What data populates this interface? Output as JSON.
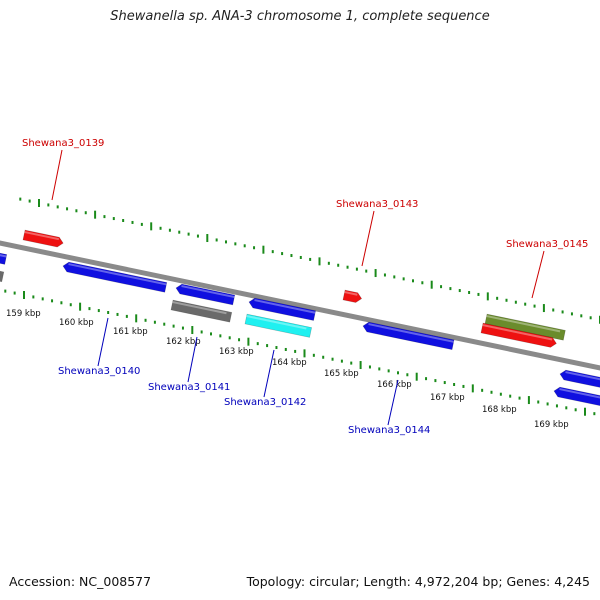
{
  "title": "Shewanella sp. ANA-3 chromosome 1, complete sequence",
  "footer": {
    "accession_label": "Accession:",
    "accession": "NC_008577",
    "topology_label": "Topology:",
    "topology": "circular",
    "length_label": "Length:",
    "length": "4,972,204 bp",
    "genes_label": "Genes:",
    "genes": "4,245"
  },
  "colors": {
    "backbone": "#8a8a8a",
    "tick": "#1a8a1a",
    "plus_label": "#cc0000",
    "minus_label": "#0000bb",
    "blue": "#1010e0",
    "red": "#ee1111",
    "gray": "#6a6a6a",
    "cyan": "#20f0f0",
    "olive": "#6a8c2c"
  },
  "kbp_labels": [
    "159 kbp",
    "160 kbp",
    "161 kbp",
    "162 kbp",
    "163 kbp",
    "164 kbp",
    "165 kbp",
    "166 kbp",
    "167 kbp",
    "168 kbp",
    "169 kbp"
  ],
  "genes": [
    {
      "id": "Shewana3_0139",
      "label": "Shewana3_0139",
      "strand": "plus",
      "color": "red"
    },
    {
      "id": "Shewana3_0140",
      "label": "Shewana3_0140",
      "strand": "minus",
      "color": "blue"
    },
    {
      "id": "Shewana3_0141",
      "label": "Shewana3_0141",
      "strand": "minus",
      "color": "gray"
    },
    {
      "id": "Shewana3_0142",
      "label": "Shewana3_0142",
      "strand": "minus",
      "color": "cyan"
    },
    {
      "id": "Shewana3_0143",
      "label": "Shewana3_0143",
      "strand": "plus",
      "color": "red"
    },
    {
      "id": "Shewana3_0144",
      "label": "Shewana3_0144",
      "strand": "minus",
      "color": "blue"
    },
    {
      "id": "Shewana3_0145",
      "label": "Shewana3_0145",
      "strand": "plus",
      "color": "olive"
    }
  ]
}
